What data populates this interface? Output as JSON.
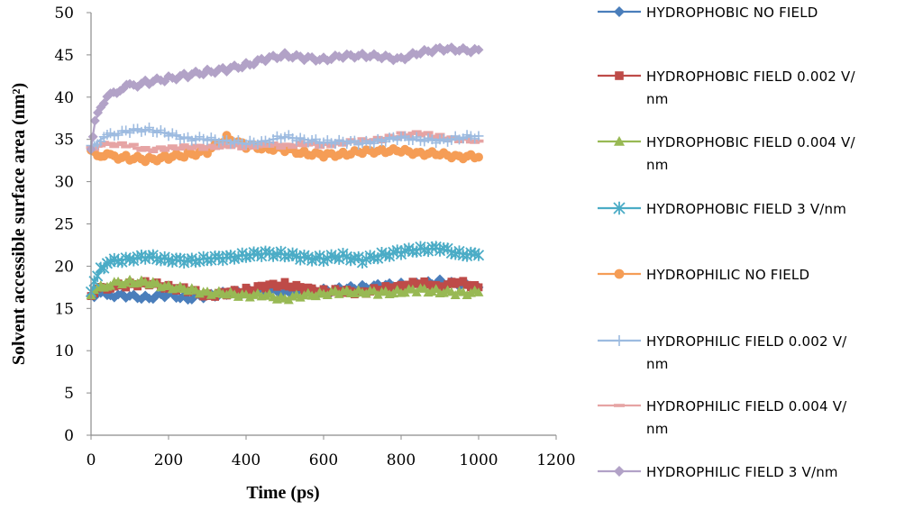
{
  "chart_data": {
    "type": "line",
    "xlabel": "Time (ps)",
    "ylabel": "Solvent accessible surface area (nm²)",
    "xlim": [
      0,
      1200
    ],
    "ylim": [
      0,
      50
    ],
    "xticks": [
      0,
      200,
      400,
      600,
      800,
      1000,
      1200
    ],
    "yticks": [
      0,
      5,
      10,
      15,
      20,
      25,
      30,
      35,
      40,
      45,
      50
    ],
    "grid": false,
    "legend_position": "right",
    "series": [
      {
        "name": "HYDROPHOBIC NO FIELD",
        "color": "#4a7ebb",
        "marker": "diamond",
        "x": [
          0,
          25,
          50,
          100,
          150,
          200,
          250,
          300,
          350,
          400,
          450,
          500,
          550,
          600,
          650,
          700,
          750,
          800,
          850,
          900,
          950,
          1000
        ],
        "y": [
          16.5,
          16.8,
          16.6,
          16.4,
          16.3,
          16.6,
          16.2,
          16.5,
          16.8,
          17.0,
          17.2,
          16.8,
          17.0,
          17.1,
          17.3,
          17.5,
          17.7,
          17.8,
          17.9,
          18.2,
          17.8,
          17.5
        ]
      },
      {
        "name": "HYDROPHOBIC FIELD 0.002 V/nm",
        "color": "#be4b48",
        "marker": "square",
        "x": [
          0,
          25,
          50,
          100,
          150,
          200,
          250,
          300,
          350,
          400,
          450,
          500,
          550,
          600,
          650,
          700,
          750,
          800,
          850,
          900,
          950,
          1000
        ],
        "y": [
          16.7,
          17.3,
          17.6,
          17.8,
          18.0,
          17.5,
          17.2,
          16.5,
          16.8,
          17.2,
          17.6,
          17.9,
          17.3,
          17.1,
          17.0,
          16.9,
          17.3,
          17.7,
          18.0,
          17.6,
          18.1,
          17.5
        ]
      },
      {
        "name": "HYDROPHOBIC FIELD 0.004 V/nm",
        "color": "#98b954",
        "marker": "triangle",
        "x": [
          0,
          25,
          50,
          100,
          150,
          200,
          250,
          300,
          350,
          400,
          450,
          500,
          550,
          600,
          650,
          700,
          750,
          800,
          850,
          900,
          950,
          1000
        ],
        "y": [
          16.8,
          17.5,
          17.9,
          18.2,
          18.0,
          17.6,
          17.2,
          16.9,
          16.7,
          16.6,
          16.5,
          16.2,
          16.5,
          16.8,
          16.9,
          17.0,
          16.8,
          17.0,
          17.2,
          17.0,
          16.8,
          16.9
        ]
      },
      {
        "name": "HYDROPHOBIC FIELD 3 V/nm",
        "color": "#4bacc6",
        "marker": "star",
        "x": [
          0,
          25,
          50,
          100,
          150,
          200,
          250,
          300,
          350,
          400,
          450,
          500,
          550,
          600,
          650,
          700,
          750,
          800,
          850,
          900,
          950,
          1000
        ],
        "y": [
          17.0,
          19.8,
          20.5,
          20.9,
          21.1,
          20.8,
          20.6,
          20.9,
          21.0,
          21.3,
          21.5,
          21.4,
          21.0,
          20.9,
          21.2,
          20.7,
          21.3,
          21.7,
          22.0,
          22.1,
          21.5,
          21.3
        ]
      },
      {
        "name": "HYDROPHILIC NO FIELD",
        "color": "#f59d56",
        "marker": "circle",
        "x": [
          0,
          25,
          50,
          100,
          150,
          200,
          250,
          300,
          350,
          400,
          450,
          500,
          550,
          600,
          650,
          700,
          750,
          800,
          850,
          900,
          950,
          1000
        ],
        "y": [
          33.5,
          33.2,
          33.0,
          32.8,
          32.6,
          32.9,
          33.2,
          33.6,
          35.2,
          34.2,
          34.0,
          33.8,
          33.4,
          33.1,
          33.3,
          33.5,
          33.7,
          33.6,
          33.4,
          33.2,
          33.0,
          32.9
        ]
      },
      {
        "name": "HYDROPHILIC FIELD 0.002 V/nm",
        "color": "#9dbbe0",
        "marker": "plus",
        "x": [
          0,
          25,
          50,
          100,
          150,
          200,
          250,
          300,
          350,
          400,
          450,
          500,
          550,
          600,
          650,
          700,
          750,
          800,
          850,
          900,
          950,
          1000
        ],
        "y": [
          34.0,
          35.0,
          35.5,
          36.0,
          36.2,
          35.6,
          35.1,
          35.0,
          34.8,
          34.5,
          34.8,
          35.3,
          35.0,
          34.6,
          34.8,
          34.5,
          34.9,
          35.2,
          35.0,
          34.8,
          35.2,
          35.4
        ]
      },
      {
        "name": "HYDROPHILIC FIELD 0.004 V/nm",
        "color": "#e6a4a4",
        "marker": "dash",
        "x": [
          0,
          25,
          50,
          100,
          150,
          200,
          250,
          300,
          350,
          400,
          450,
          500,
          550,
          600,
          650,
          700,
          750,
          800,
          850,
          900,
          950,
          1000
        ],
        "y": [
          34.0,
          34.3,
          34.5,
          34.2,
          33.8,
          33.9,
          34.2,
          34.0,
          34.3,
          34.1,
          34.4,
          34.2,
          34.5,
          34.3,
          34.6,
          34.8,
          35.0,
          35.5,
          35.7,
          35.3,
          35.0,
          34.8
        ]
      },
      {
        "name": "HYDROPHILIC FIELD 3 V/nm",
        "color": "#b2a2c7",
        "marker": "diamond",
        "x": [
          0,
          10,
          25,
          50,
          75,
          100,
          150,
          200,
          250,
          300,
          350,
          400,
          450,
          500,
          550,
          600,
          650,
          700,
          750,
          800,
          850,
          900,
          950,
          1000
        ],
        "y": [
          34.0,
          37.0,
          39.0,
          40.2,
          41.0,
          41.3,
          41.8,
          42.2,
          42.6,
          43.0,
          43.3,
          43.8,
          44.5,
          45.0,
          44.6,
          44.5,
          44.8,
          45.0,
          44.7,
          44.6,
          45.2,
          45.8,
          45.5,
          45.6
        ]
      }
    ]
  }
}
